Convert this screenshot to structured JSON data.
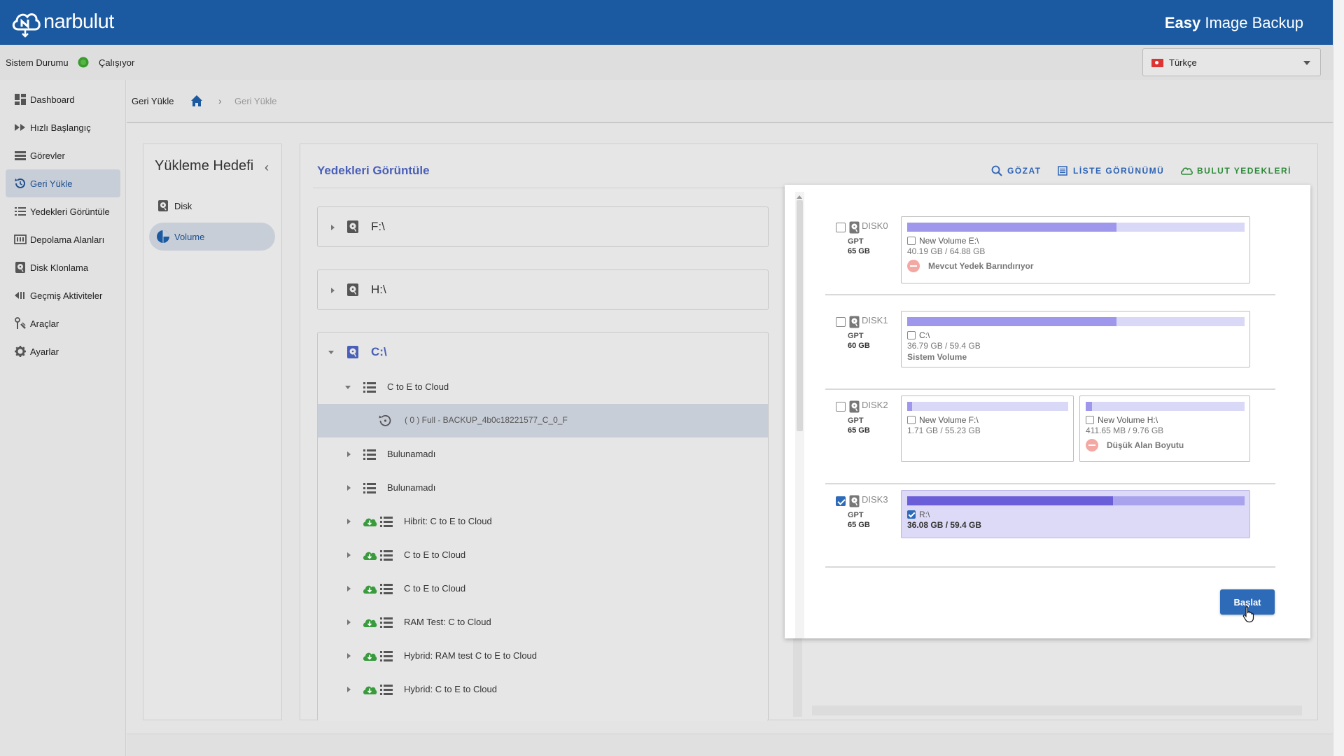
{
  "header": {
    "logo_text": "narbulut",
    "product_bold": "Easy",
    "product_rest": " Image Backup"
  },
  "status": {
    "label": "Sistem Durumu",
    "value": "Çalışıyor",
    "color": "#3a9a2e"
  },
  "language": {
    "selected": "Türkçe"
  },
  "sidebar": {
    "items": [
      {
        "label": "Dashboard",
        "icon": "dashboard-icon"
      },
      {
        "label": "Hızlı Başlangıç",
        "icon": "fast-forward-icon"
      },
      {
        "label": "Görevler",
        "icon": "task-list-icon"
      },
      {
        "label": "Geri Yükle",
        "icon": "restore-icon",
        "active": true
      },
      {
        "label": "Yedekleri Görüntüle",
        "icon": "list-icon"
      },
      {
        "label": "Depolama Alanları",
        "icon": "storage-icon"
      },
      {
        "label": "Disk Klonlama",
        "icon": "disk-icon"
      },
      {
        "label": "Geçmiş Aktiviteler",
        "icon": "history-icon"
      },
      {
        "label": "Araçlar",
        "icon": "tools-icon"
      },
      {
        "label": "Ayarlar",
        "icon": "gear-icon"
      }
    ]
  },
  "breadcrumb": {
    "section": "Geri Yükle",
    "separator": "›",
    "current": "Geri Yükle"
  },
  "target": {
    "title": "Yükleme Hedefi",
    "collapse": "‹",
    "options": [
      {
        "label": "Disk",
        "icon": "disk-icon"
      },
      {
        "label": "Volume",
        "icon": "pie-chart-icon",
        "active": true
      }
    ]
  },
  "main": {
    "title": "Yedekleri Görüntüle",
    "tools": {
      "browse": "GÖZAT",
      "list_view": "LİSTE GÖRÜNÜMÜ",
      "cloud_backups": "BULUT YEDEKLERİ"
    },
    "volumes": [
      {
        "label": "F:\\"
      },
      {
        "label": "H:\\"
      },
      {
        "label": "C:\\",
        "expanded": true
      }
    ],
    "tree": [
      {
        "label": "C to E to Cloud",
        "expanded": true,
        "cloud": false
      },
      {
        "label": "( 0 ) Full - BACKUP_4b0c18221577_C_0_F",
        "selected": true,
        "child": true
      },
      {
        "label": "Bulunamadı",
        "cloud": false
      },
      {
        "label": "Bulunamadı",
        "cloud": false
      },
      {
        "label": "Hibrit: C to E to Cloud",
        "cloud": true
      },
      {
        "label": "C to E to Cloud",
        "cloud": true
      },
      {
        "label": "C to E to Cloud",
        "cloud": true
      },
      {
        "label": "RAM Test: C to Cloud",
        "cloud": true
      },
      {
        "label": "Hybrid: RAM test C to E to Cloud",
        "cloud": true
      },
      {
        "label": "Hybrid: C to E to Cloud",
        "cloud": true
      }
    ]
  },
  "disks": [
    {
      "name": "DISK0",
      "type": "GPT",
      "size": "65 GB",
      "checked": false,
      "partitions": [
        {
          "name": "New Volume E:\\",
          "usage": "40.19 GB / 64.88 GB",
          "used_fraction": 0.62,
          "note": "Mevcut Yedek Barındırıyor",
          "checked": false
        }
      ]
    },
    {
      "name": "DISK1",
      "type": "GPT",
      "size": "60 GB",
      "checked": false,
      "partitions": [
        {
          "name": "C:\\",
          "usage": "36.79 GB / 59.4 GB",
          "used_fraction": 0.62,
          "label": "Sistem Volume",
          "checked": false
        }
      ]
    },
    {
      "name": "DISK2",
      "type": "GPT",
      "size": "65 GB",
      "checked": false,
      "partitions": [
        {
          "name": "New Volume F:\\",
          "usage": "1.71 GB / 55.23 GB",
          "used_fraction": 0.03,
          "checked": false
        },
        {
          "name": "New Volume H:\\",
          "usage": "411.65 MB / 9.76 GB",
          "used_fraction": 0.04,
          "note": "Düşük Alan Boyutu",
          "checked": false
        }
      ]
    },
    {
      "name": "DISK3",
      "type": "GPT",
      "size": "65 GB",
      "checked": true,
      "partitions": [
        {
          "name": "R:\\",
          "usage": "36.08 GB / 59.4 GB",
          "used_fraction": 0.61,
          "checked": true
        }
      ]
    }
  ],
  "actions": {
    "start": "Başlat"
  }
}
